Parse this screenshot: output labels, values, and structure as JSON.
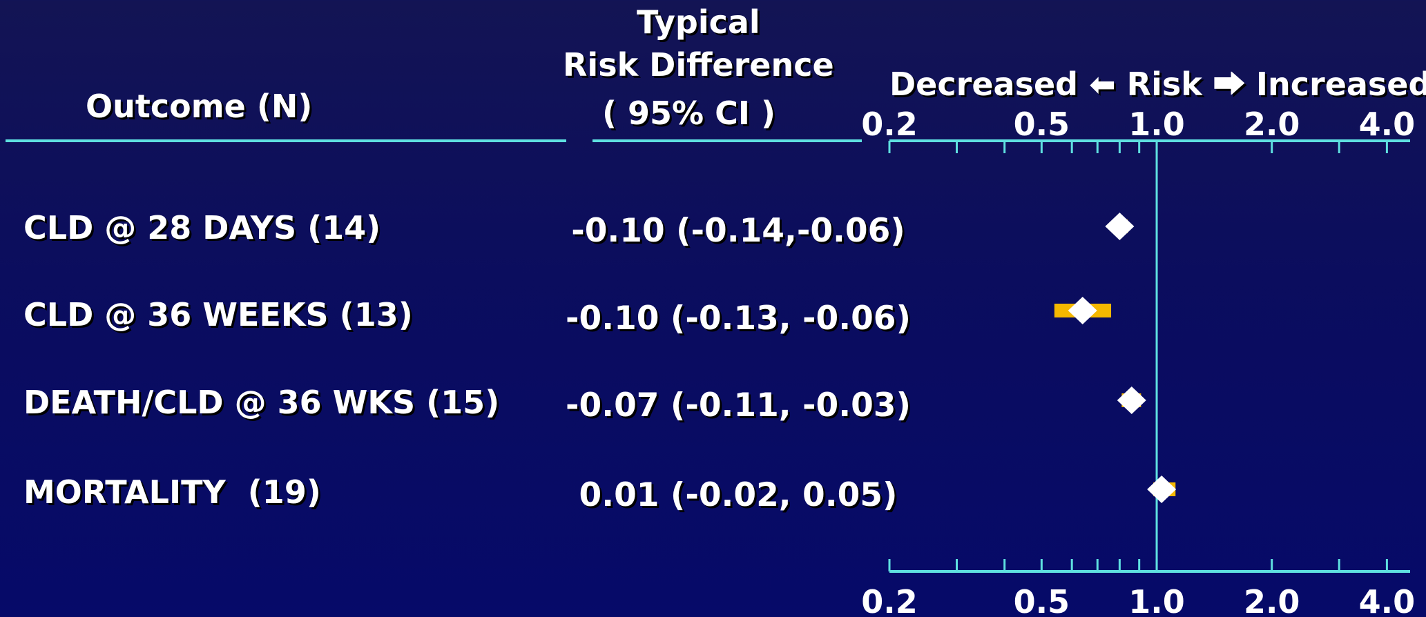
{
  "headers": {
    "outcome": "Outcome (N)",
    "risk_difference_line1": "Typical",
    "risk_difference_line2": "Risk Difference",
    "risk_difference_line3": "( 95% CI )",
    "decreased": "Decreased",
    "risk": "Risk",
    "increased": "Increased"
  },
  "colors": {
    "background": "#0b0d5e",
    "axis": "#5fe0e0",
    "ci_bar": "#f5b800",
    "marker": "#ffffff",
    "text": "#ffffff"
  },
  "chart_data": {
    "type": "forest",
    "x_scale": "log",
    "xlim": [
      0.2,
      4.6
    ],
    "ticks": [
      0.2,
      0.3,
      0.4,
      0.5,
      0.6,
      0.7,
      0.8,
      0.9,
      1.0,
      2.0,
      3.0,
      4.0
    ],
    "tick_labels": [
      {
        "value": 0.2,
        "label": "0.2"
      },
      {
        "value": 0.5,
        "label": "0.5"
      },
      {
        "value": 1.0,
        "label": "1.0"
      },
      {
        "value": 2.0,
        "label": "2.0"
      },
      {
        "value": 4.0,
        "label": "4.0"
      }
    ],
    "reference_line": 1.0,
    "rows": [
      {
        "label": "CLD @ 28 DAYS (14)",
        "rd_text": "-0.10 (-0.14,-0.06)",
        "point": 0.8,
        "ci": [
          0.77,
          0.84
        ]
      },
      {
        "label": "CLD @ 36 WEEKS (13)",
        "rd_text": "-0.10 (-0.13, -0.06)",
        "point": 0.64,
        "ci": [
          0.54,
          0.76
        ]
      },
      {
        "label": "DEATH/CLD @ 36 WKS (15)",
        "rd_text": "-0.07 (-0.11, -0.03)",
        "point": 0.86,
        "ci": [
          0.81,
          0.91
        ]
      },
      {
        "label": "MORTALITY  (19)",
        "rd_text": "0.01 (-0.02, 0.05)",
        "point": 1.03,
        "ci": [
          0.98,
          1.12
        ]
      }
    ]
  }
}
